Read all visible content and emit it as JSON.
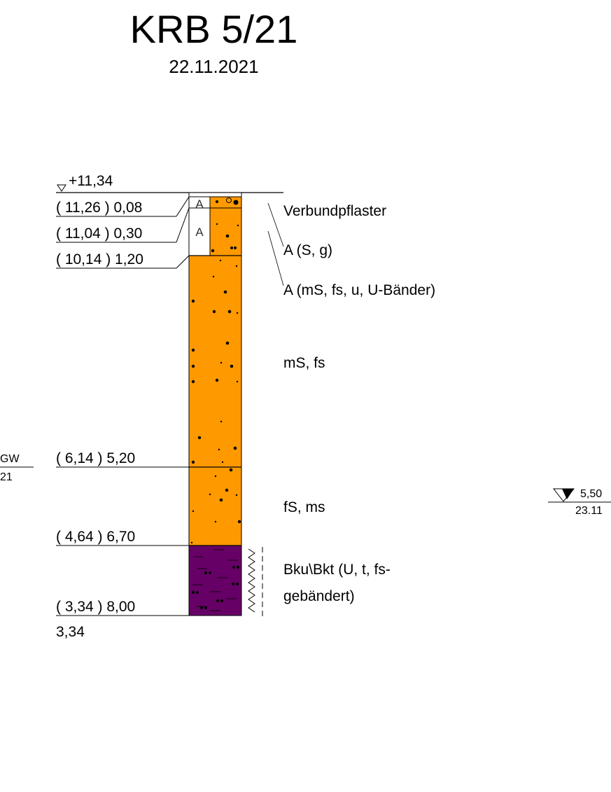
{
  "profile": {
    "title": "KRB 5/21",
    "date": "22.11.2021",
    "top_elevation": "+11,34",
    "end_label": "3,34"
  },
  "depth_labels": [
    "( 11,26 ) 0,08",
    "( 11,04 ) 0,30",
    "( 10,14 ) 1,20",
    "( 6,14 ) 5,20",
    "( 4,64 ) 6,70",
    "( 3,34 ) 8,00"
  ],
  "layer_descriptions": {
    "verbundpflaster": "Verbundpflaster",
    "fill_sg": "A (S, g)",
    "fill_ms": "A (mS, fs, u, U-Bänder)",
    "ms_fs": "mS, fs",
    "fs_ms": "fS, ms",
    "bku_line1": "Bku\\Bkt (U, t, fs-",
    "bku_line2": "gebändert)"
  },
  "fill_marker": "A",
  "groundwater": {
    "left_label_top": "GW",
    "left_label_bottom": "21",
    "right_depth": "5,50",
    "right_date": "23.11"
  },
  "colors": {
    "sand": "#FF9900",
    "clay": "#660066",
    "line": "#000000"
  }
}
